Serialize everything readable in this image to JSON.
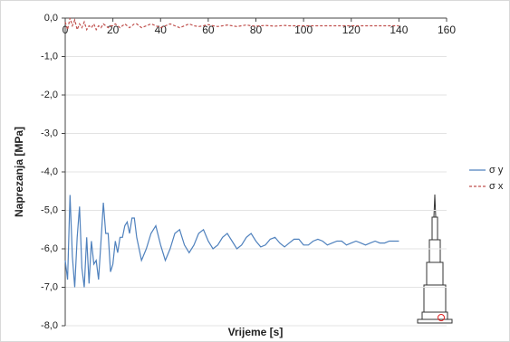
{
  "chart_data": {
    "type": "line",
    "x_label": "Vrijeme [s]",
    "y_label": "Naprezanja [MPa]",
    "x": [
      0,
      1,
      2,
      3,
      4,
      5,
      6,
      7,
      8,
      9,
      10,
      11,
      12,
      13,
      14,
      15,
      16,
      17,
      18,
      19,
      20,
      21,
      22,
      23,
      24,
      25,
      26,
      27,
      28,
      29,
      30,
      32,
      34,
      36,
      38,
      40,
      42,
      44,
      46,
      48,
      50,
      52,
      54,
      56,
      58,
      60,
      62,
      64,
      66,
      68,
      70,
      72,
      74,
      76,
      78,
      80,
      82,
      84,
      86,
      88,
      90,
      92,
      94,
      96,
      98,
      100,
      102,
      104,
      106,
      108,
      110,
      112,
      114,
      116,
      118,
      120,
      122,
      124,
      126,
      128,
      130,
      132,
      134,
      136,
      138,
      140
    ],
    "series": [
      {
        "name": "σ  y",
        "color": "#4f81bd",
        "dashed": false,
        "values": [
          -6.3,
          -6.8,
          -4.6,
          -6.2,
          -7.0,
          -5.7,
          -4.9,
          -6.5,
          -7.0,
          -5.7,
          -6.9,
          -5.8,
          -6.4,
          -6.3,
          -6.8,
          -5.8,
          -4.8,
          -5.6,
          -5.6,
          -6.6,
          -6.4,
          -5.8,
          -6.1,
          -5.7,
          -5.7,
          -5.4,
          -5.3,
          -5.6,
          -5.2,
          -5.2,
          -5.7,
          -6.3,
          -6.0,
          -5.6,
          -5.4,
          -5.9,
          -6.3,
          -6.0,
          -5.6,
          -5.5,
          -5.9,
          -6.1,
          -5.9,
          -5.6,
          -5.5,
          -5.8,
          -6.0,
          -5.9,
          -5.7,
          -5.6,
          -5.8,
          -6.0,
          -5.9,
          -5.7,
          -5.6,
          -5.8,
          -5.95,
          -5.9,
          -5.75,
          -5.7,
          -5.85,
          -5.95,
          -5.85,
          -5.75,
          -5.75,
          -5.9,
          -5.9,
          -5.8,
          -5.75,
          -5.8,
          -5.9,
          -5.85,
          -5.8,
          -5.8,
          -5.9,
          -5.85,
          -5.8,
          -5.85,
          -5.9,
          -5.85,
          -5.8,
          -5.85,
          -5.85,
          -5.8,
          -5.8,
          -5.8
        ]
      },
      {
        "name": "σ  x",
        "color": "#c0504d",
        "dashed": true,
        "values": [
          -0.1,
          -0.3,
          0.0,
          -0.2,
          -0.05,
          -0.3,
          -0.15,
          -0.25,
          -0.1,
          -0.3,
          -0.2,
          -0.25,
          -0.15,
          -0.3,
          -0.2,
          -0.25,
          -0.15,
          -0.2,
          -0.25,
          -0.2,
          -0.2,
          -0.15,
          -0.2,
          -0.25,
          -0.2,
          -0.15,
          -0.2,
          -0.25,
          -0.2,
          -0.15,
          -0.15,
          -0.25,
          -0.2,
          -0.15,
          -0.2,
          -0.25,
          -0.2,
          -0.15,
          -0.2,
          -0.25,
          -0.2,
          -0.15,
          -0.2,
          -0.22,
          -0.2,
          -0.17,
          -0.2,
          -0.22,
          -0.2,
          -0.18,
          -0.2,
          -0.22,
          -0.2,
          -0.18,
          -0.2,
          -0.21,
          -0.2,
          -0.19,
          -0.2,
          -0.21,
          -0.2,
          -0.19,
          -0.2,
          -0.2,
          -0.2,
          -0.2,
          -0.2,
          -0.2,
          -0.2,
          -0.2,
          -0.2,
          -0.2,
          -0.2,
          -0.2,
          -0.2,
          -0.2,
          -0.2,
          -0.2,
          -0.2,
          -0.2,
          -0.2,
          -0.2,
          -0.2,
          -0.2,
          -0.2,
          -0.2
        ]
      }
    ],
    "xlim": [
      0,
      160
    ],
    "xticks": [
      0,
      20,
      40,
      60,
      80,
      100,
      120,
      140,
      160
    ],
    "ylim": [
      -8,
      0
    ],
    "yticks": [
      {
        "value": 0,
        "label": "0,0"
      },
      {
        "value": -1,
        "label": "-1,0"
      },
      {
        "value": -2,
        "label": "-2,0"
      },
      {
        "value": -3,
        "label": "-3,0"
      },
      {
        "value": -4,
        "label": "-4,0"
      },
      {
        "value": -5,
        "label": "-5,0"
      },
      {
        "value": -6,
        "label": "-6,0"
      },
      {
        "value": -7,
        "label": "-7,0"
      },
      {
        "value": -8,
        "label": "-8,0"
      }
    ],
    "grid": true,
    "legend": "right"
  }
}
